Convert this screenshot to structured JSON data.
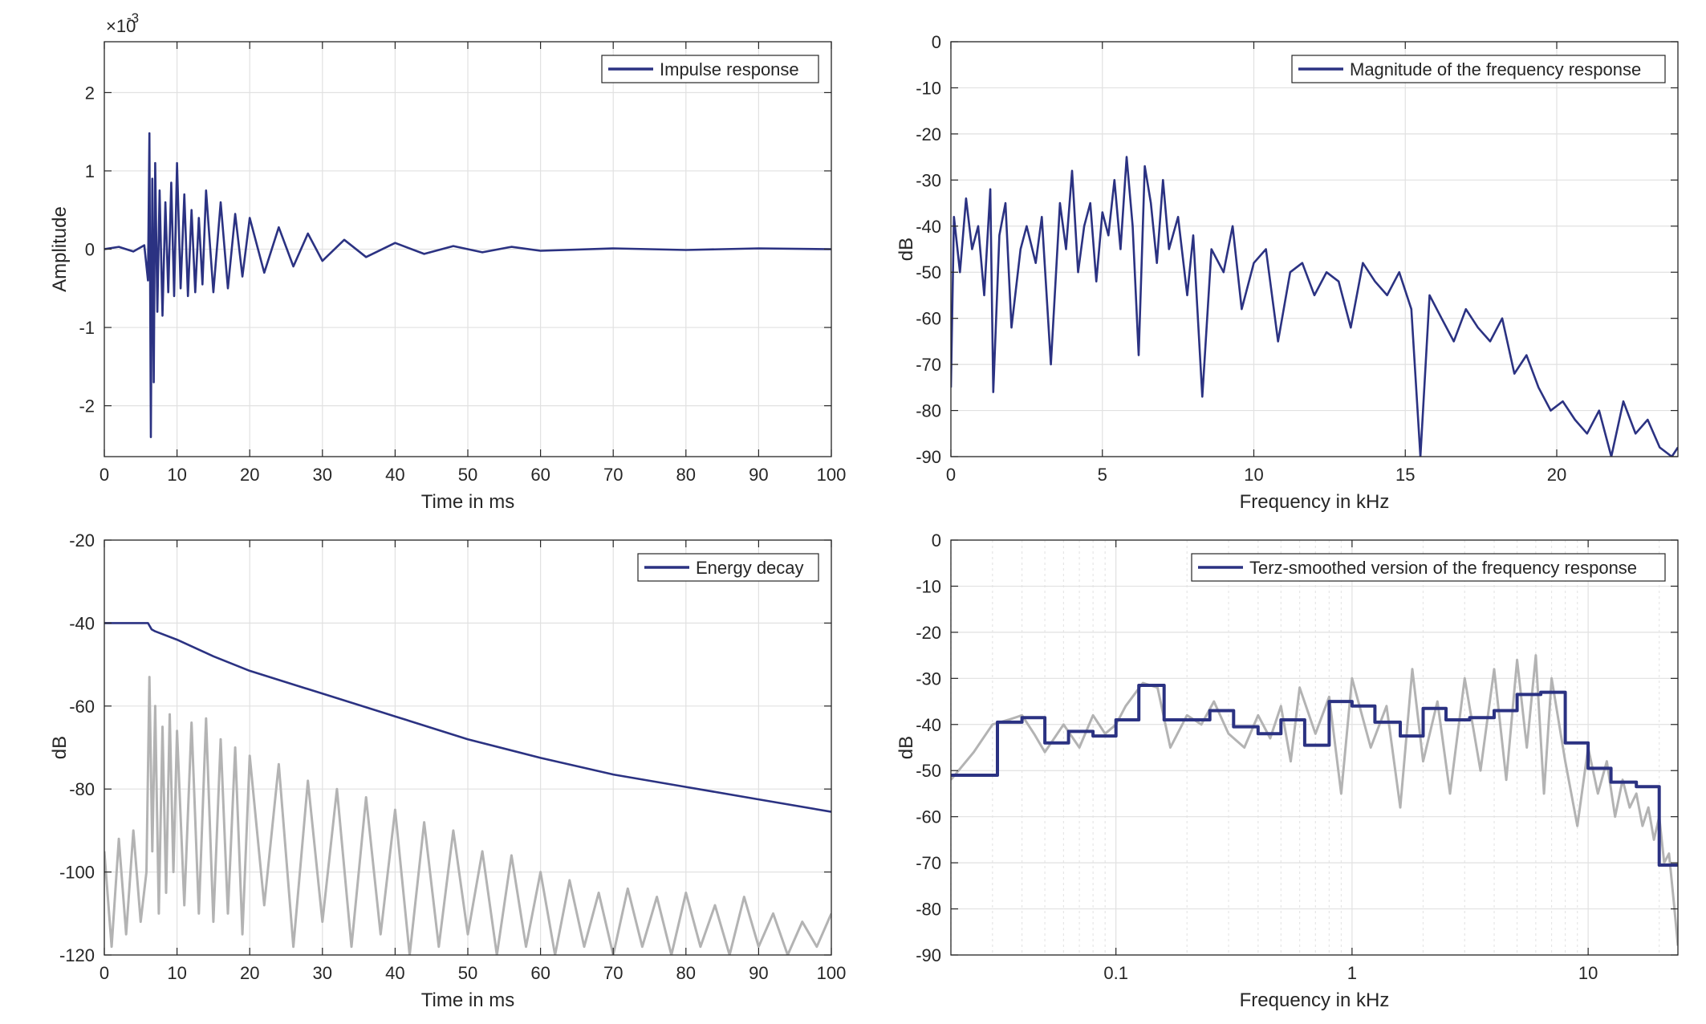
{
  "chart_data": [
    {
      "type": "line",
      "xlabel": "Time in ms",
      "ylabel": "Amplitude",
      "exponent_label": "×10",
      "exponent_power": "-3",
      "xlim": [
        0,
        100
      ],
      "ylim": [
        -2.65,
        2.65
      ],
      "xticks": [
        0,
        10,
        20,
        30,
        40,
        50,
        60,
        70,
        80,
        90,
        100
      ],
      "xtick_labels": [
        "0",
        "10",
        "20",
        "30",
        "40",
        "50",
        "60",
        "70",
        "80",
        "90",
        "100"
      ],
      "yticks": [
        -2,
        -1,
        0,
        1,
        2
      ],
      "ytick_labels": [
        "-2",
        "-1",
        "0",
        "1",
        "2"
      ],
      "grid": true,
      "legend_position": "top-right",
      "series": [
        {
          "name": "Impulse response",
          "color": "#2b3282",
          "x": [
            0,
            2,
            4,
            5.5,
            6,
            6.2,
            6.4,
            6.6,
            6.8,
            7,
            7.3,
            7.6,
            8,
            8.4,
            8.8,
            9.2,
            9.6,
            10,
            10.5,
            11,
            11.5,
            12,
            12.5,
            13,
            13.5,
            14,
            15,
            16,
            17,
            18,
            19,
            20,
            22,
            24,
            26,
            28,
            30,
            33,
            36,
            40,
            44,
            48,
            52,
            56,
            60,
            70,
            80,
            90,
            100
          ],
          "y": [
            0,
            0.03,
            -0.03,
            0.05,
            -0.4,
            1.48,
            -2.4,
            0.9,
            -1.7,
            1.1,
            -0.8,
            0.75,
            -0.85,
            0.6,
            -0.55,
            0.85,
            -0.6,
            1.1,
            -0.5,
            0.7,
            -0.6,
            0.5,
            -0.55,
            0.4,
            -0.45,
            0.75,
            -0.55,
            0.6,
            -0.5,
            0.45,
            -0.35,
            0.4,
            -0.3,
            0.28,
            -0.22,
            0.2,
            -0.15,
            0.12,
            -0.1,
            0.08,
            -0.06,
            0.04,
            -0.04,
            0.03,
            -0.02,
            0.01,
            -0.01,
            0.01,
            0
          ]
        }
      ]
    },
    {
      "type": "line",
      "xlabel": "Frequency in kHz",
      "ylabel": "dB",
      "xlim": [
        0,
        24
      ],
      "ylim": [
        -90,
        0
      ],
      "xticks": [
        0,
        5,
        10,
        15,
        20
      ],
      "xtick_labels": [
        "0",
        "5",
        "10",
        "15",
        "20"
      ],
      "yticks": [
        0,
        -10,
        -20,
        -30,
        -40,
        -50,
        -60,
        -70,
        -80,
        -90
      ],
      "ytick_labels": [
        "0",
        "-10",
        "-20",
        "-30",
        "-40",
        "-50",
        "-60",
        "-70",
        "-80",
        "-90"
      ],
      "grid": true,
      "legend_position": "top-right",
      "series": [
        {
          "name": "Magnitude of the frequency response",
          "color": "#2b3282",
          "x": [
            0,
            0.1,
            0.3,
            0.5,
            0.7,
            0.9,
            1.1,
            1.3,
            1.4,
            1.6,
            1.8,
            2.0,
            2.3,
            2.5,
            2.8,
            3.0,
            3.3,
            3.6,
            3.8,
            4.0,
            4.2,
            4.4,
            4.6,
            4.8,
            5.0,
            5.2,
            5.4,
            5.6,
            5.8,
            6.0,
            6.2,
            6.4,
            6.6,
            6.8,
            7.0,
            7.2,
            7.5,
            7.8,
            8.0,
            8.3,
            8.6,
            9.0,
            9.3,
            9.6,
            10.0,
            10.4,
            10.8,
            11.2,
            11.6,
            12.0,
            12.4,
            12.8,
            13.2,
            13.6,
            14.0,
            14.4,
            14.8,
            15.2,
            15.5,
            15.8,
            16.2,
            16.6,
            17.0,
            17.4,
            17.8,
            18.2,
            18.6,
            19.0,
            19.4,
            19.8,
            20.2,
            20.6,
            21.0,
            21.4,
            21.8,
            22.2,
            22.6,
            23.0,
            23.4,
            23.8,
            24.0
          ],
          "y": [
            -75,
            -38,
            -50,
            -34,
            -45,
            -40,
            -55,
            -32,
            -76,
            -42,
            -35,
            -62,
            -45,
            -40,
            -48,
            -38,
            -70,
            -35,
            -45,
            -28,
            -50,
            -40,
            -35,
            -52,
            -37,
            -42,
            -30,
            -45,
            -25,
            -40,
            -68,
            -27,
            -35,
            -48,
            -30,
            -45,
            -38,
            -55,
            -42,
            -77,
            -45,
            -50,
            -40,
            -58,
            -48,
            -45,
            -65,
            -50,
            -48,
            -55,
            -50,
            -52,
            -62,
            -48,
            -52,
            -55,
            -50,
            -58,
            -90,
            -55,
            -60,
            -65,
            -58,
            -62,
            -65,
            -60,
            -72,
            -68,
            -75,
            -80,
            -78,
            -82,
            -85,
            -80,
            -90,
            -78,
            -85,
            -82,
            -88,
            -90,
            -88
          ]
        }
      ]
    },
    {
      "type": "line",
      "xlabel": "Time in ms",
      "ylabel": "dB",
      "xlim": [
        0,
        100
      ],
      "ylim": [
        -120,
        -20
      ],
      "xticks": [
        0,
        10,
        20,
        30,
        40,
        50,
        60,
        70,
        80,
        90,
        100
      ],
      "xtick_labels": [
        "0",
        "10",
        "20",
        "30",
        "40",
        "50",
        "60",
        "70",
        "80",
        "90",
        "100"
      ],
      "yticks": [
        -20,
        -40,
        -60,
        -80,
        -100,
        -120
      ],
      "ytick_labels": [
        "-20",
        "-40",
        "-60",
        "-80",
        "-100",
        "-120"
      ],
      "grid": true,
      "legend_position": "top-right",
      "series": [
        {
          "name": "",
          "color": "#b3b3b3",
          "x": [
            0,
            1,
            2,
            3,
            4,
            5,
            5.8,
            6.2,
            6.6,
            7,
            7.5,
            8,
            8.5,
            9,
            9.5,
            10,
            11,
            12,
            13,
            14,
            15,
            16,
            17,
            18,
            19,
            20,
            22,
            24,
            26,
            28,
            30,
            32,
            34,
            36,
            38,
            40,
            42,
            44,
            46,
            48,
            50,
            52,
            54,
            56,
            58,
            60,
            62,
            64,
            66,
            68,
            70,
            72,
            74,
            76,
            78,
            80,
            82,
            84,
            86,
            88,
            90,
            92,
            94,
            96,
            98,
            100
          ],
          "y": [
            -95,
            -118,
            -92,
            -115,
            -90,
            -112,
            -100,
            -53,
            -95,
            -60,
            -110,
            -65,
            -105,
            -62,
            -100,
            -66,
            -108,
            -64,
            -110,
            -63,
            -112,
            -68,
            -110,
            -70,
            -115,
            -72,
            -108,
            -74,
            -118,
            -78,
            -112,
            -80,
            -118,
            -82,
            -115,
            -85,
            -120,
            -88,
            -118,
            -90,
            -115,
            -95,
            -120,
            -96,
            -118,
            -100,
            -120,
            -102,
            -118,
            -105,
            -120,
            -104,
            -118,
            -106,
            -120,
            -105,
            -118,
            -108,
            -120,
            -106,
            -118,
            -110,
            -120,
            -112,
            -118,
            -110
          ]
        },
        {
          "name": "Energy decay",
          "color": "#2b3282",
          "x": [
            0,
            6,
            6.5,
            7,
            10,
            15,
            20,
            30,
            40,
            50,
            60,
            70,
            80,
            90,
            100
          ],
          "y": [
            -40,
            -40,
            -41.5,
            -42,
            -44,
            -48,
            -51.5,
            -57,
            -62.5,
            -68,
            -72.5,
            -76.5,
            -79.5,
            -82.5,
            -85.5
          ]
        }
      ]
    },
    {
      "type": "line",
      "xlabel": "Frequency in kHz",
      "ylabel": "dB",
      "xscale": "log",
      "xlim": [
        0.02,
        24
      ],
      "ylim": [
        -90,
        0
      ],
      "xticks": [
        0.1,
        1,
        10
      ],
      "xtick_labels": [
        "0.1",
        "1",
        "10"
      ],
      "yticks": [
        0,
        -10,
        -20,
        -30,
        -40,
        -50,
        -60,
        -70,
        -80,
        -90
      ],
      "ytick_labels": [
        "0",
        "-10",
        "-20",
        "-30",
        "-40",
        "-50",
        "-60",
        "-70",
        "-80",
        "-90"
      ],
      "grid": true,
      "legend_position": "top-right",
      "series": [
        {
          "name": "",
          "color": "#b3b3b3",
          "x": [
            0.02,
            0.025,
            0.03,
            0.035,
            0.04,
            0.045,
            0.05,
            0.06,
            0.07,
            0.08,
            0.09,
            0.1,
            0.11,
            0.13,
            0.15,
            0.17,
            0.2,
            0.23,
            0.26,
            0.3,
            0.35,
            0.4,
            0.45,
            0.5,
            0.55,
            0.6,
            0.7,
            0.8,
            0.9,
            1.0,
            1.2,
            1.4,
            1.6,
            1.8,
            2.0,
            2.3,
            2.6,
            3.0,
            3.5,
            4.0,
            4.5,
            5.0,
            5.5,
            6.0,
            6.5,
            7.0,
            8.0,
            9.0,
            10,
            11,
            12,
            13,
            14,
            15,
            16,
            17,
            18,
            19,
            20,
            21,
            22,
            23,
            24
          ],
          "y": [
            -52,
            -46,
            -40,
            -39,
            -38,
            -42,
            -46,
            -40,
            -45,
            -38,
            -42,
            -40,
            -36,
            -31,
            -32,
            -45,
            -38,
            -40,
            -35,
            -42,
            -45,
            -38,
            -43,
            -36,
            -48,
            -32,
            -42,
            -34,
            -55,
            -30,
            -45,
            -36,
            -58,
            -28,
            -48,
            -35,
            -55,
            -30,
            -50,
            -28,
            -52,
            -26,
            -45,
            -25,
            -55,
            -30,
            -48,
            -62,
            -45,
            -55,
            -48,
            -60,
            -52,
            -58,
            -55,
            -62,
            -58,
            -65,
            -60,
            -70,
            -68,
            -78,
            -88
          ]
        },
        {
          "name": "Terz-smoothed version of the frequency response",
          "color": "#2b3282",
          "x": [
            0.02,
            0.0315,
            0.0315,
            0.04,
            0.04,
            0.05,
            0.05,
            0.063,
            0.063,
            0.08,
            0.08,
            0.1,
            0.1,
            0.125,
            0.125,
            0.16,
            0.16,
            0.2,
            0.2,
            0.25,
            0.25,
            0.315,
            0.315,
            0.4,
            0.4,
            0.5,
            0.5,
            0.63,
            0.63,
            0.8,
            0.8,
            1.0,
            1.0,
            1.25,
            1.25,
            1.6,
            1.6,
            2.0,
            2.0,
            2.5,
            2.5,
            3.15,
            3.15,
            4.0,
            4.0,
            5.0,
            5.0,
            6.3,
            6.3,
            8.0,
            8.0,
            10.0,
            10.0,
            12.5,
            12.5,
            16.0,
            16.0,
            20.0,
            20.0,
            24.0
          ],
          "y": [
            -51,
            -51,
            -39.5,
            -39.5,
            -38.5,
            -38.5,
            -44,
            -44,
            -41.5,
            -41.5,
            -42.5,
            -42.5,
            -39,
            -39,
            -31.5,
            -31.5,
            -39,
            -39,
            -39,
            -39,
            -37,
            -37,
            -40.5,
            -40.5,
            -42,
            -42,
            -39,
            -39,
            -44.5,
            -44.5,
            -35,
            -35,
            -36,
            -36,
            -39.5,
            -39.5,
            -42.5,
            -42.5,
            -36.5,
            -36.5,
            -39,
            -39,
            -38.5,
            -38.5,
            -37,
            -37,
            -33.5,
            -33.5,
            -33,
            -33,
            -44,
            -44,
            -49.5,
            -49.5,
            -52.5,
            -52.5,
            -53.5,
            -53.5,
            -70.5,
            -70.5
          ]
        }
      ]
    }
  ]
}
